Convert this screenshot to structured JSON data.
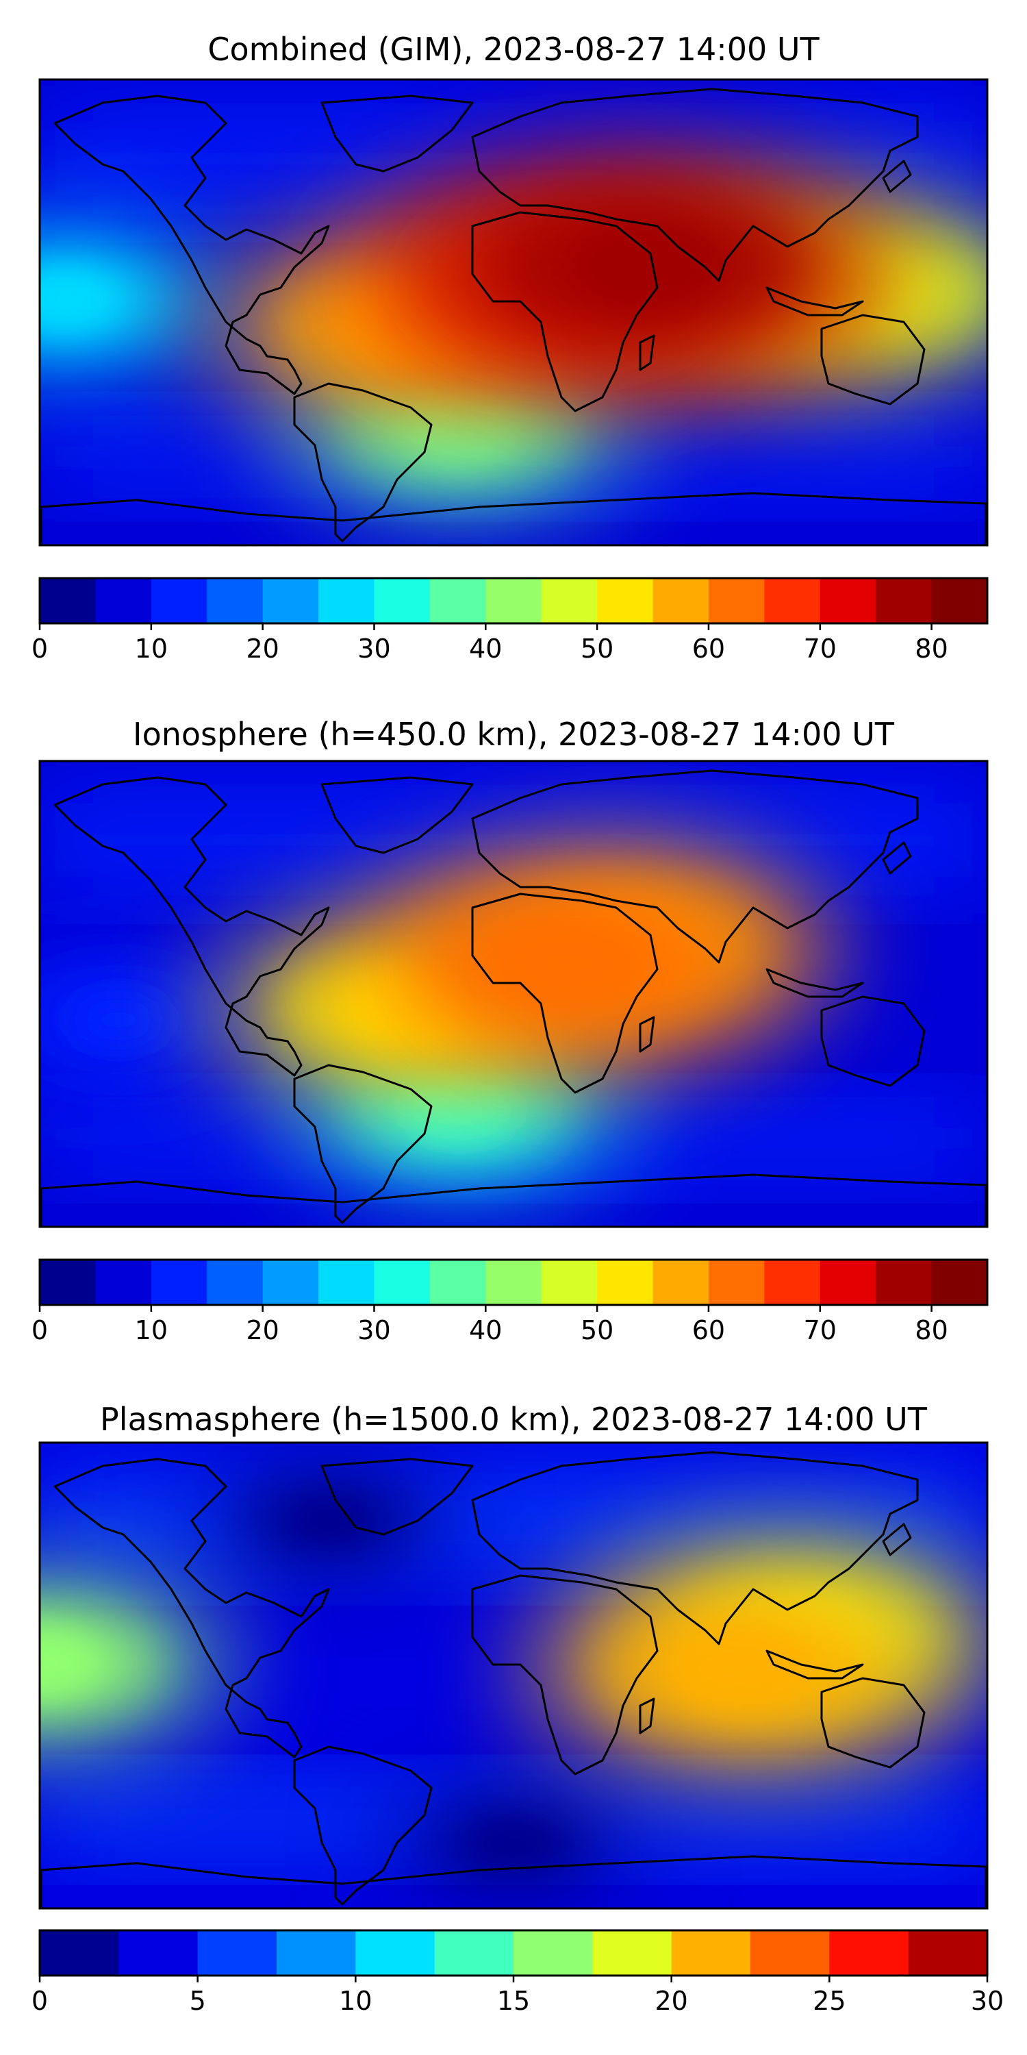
{
  "chart_data": [
    {
      "type": "heatmap",
      "title": "Combined (GIM), 2023-08-27 14:00 UT",
      "colorbar": {
        "levels": [
          0,
          5,
          10,
          15,
          20,
          25,
          30,
          35,
          40,
          45,
          50,
          55,
          60,
          65,
          70,
          75,
          80,
          85
        ],
        "tick_labels": [
          "0",
          "10",
          "20",
          "30",
          "40",
          "50",
          "60",
          "70",
          "80"
        ],
        "tick_values": [
          0,
          10,
          20,
          30,
          40,
          50,
          60,
          70,
          80
        ],
        "range": [
          0,
          85
        ]
      },
      "features": [
        {
          "lon": 50,
          "lat": 18,
          "value": 78
        },
        {
          "lon": 20,
          "lat": 12,
          "value": 68
        },
        {
          "lon": -40,
          "lat": -5,
          "value": 58
        },
        {
          "lon": 80,
          "lat": 10,
          "value": 58
        },
        {
          "lon": 135,
          "lat": 8,
          "value": 45
        },
        {
          "lon": -170,
          "lat": 5,
          "value": 25
        },
        {
          "lon": -20,
          "lat": -45,
          "value": 35
        }
      ]
    },
    {
      "type": "heatmap",
      "title": "Ionosphere  (h=450.0 km), 2023-08-27 14:00 UT",
      "colorbar": {
        "levels": [
          0,
          5,
          10,
          15,
          20,
          25,
          30,
          35,
          40,
          45,
          50,
          55,
          60,
          65,
          70,
          75,
          80,
          85
        ],
        "tick_labels": [
          "0",
          "10",
          "20",
          "30",
          "40",
          "50",
          "60",
          "70",
          "80"
        ],
        "tick_values": [
          0,
          10,
          20,
          30,
          40,
          50,
          60,
          70,
          80
        ],
        "range": [
          0,
          85
        ]
      },
      "features": [
        {
          "lon": 20,
          "lat": 12,
          "value": 62
        },
        {
          "lon": -40,
          "lat": -5,
          "value": 52
        },
        {
          "lon": 45,
          "lat": 18,
          "value": 55
        },
        {
          "lon": 100,
          "lat": 5,
          "value": 5
        },
        {
          "lon": -150,
          "lat": -10,
          "value": 12
        },
        {
          "lon": -20,
          "lat": -45,
          "value": 30
        }
      ]
    },
    {
      "type": "heatmap",
      "title": "Plasmasphere (h=1500.0 km), 2023-08-27 14:00 UT",
      "colorbar": {
        "levels": [
          0,
          2.5,
          5,
          7.5,
          10,
          12.5,
          15,
          17.5,
          20,
          22.5,
          25,
          27.5,
          30
        ],
        "tick_labels": [
          "0",
          "5",
          "10",
          "15",
          "20",
          "25",
          "30"
        ],
        "tick_values": [
          0,
          5,
          10,
          15,
          20,
          25,
          30
        ],
        "range": [
          0,
          30
        ]
      },
      "features": [
        {
          "lon": 85,
          "lat": 2,
          "value": 22
        },
        {
          "lon": 110,
          "lat": 15,
          "value": 19
        },
        {
          "lon": -180,
          "lat": 5,
          "value": 16
        },
        {
          "lon": -70,
          "lat": 60,
          "value": 1
        },
        {
          "lon": 0,
          "lat": -65,
          "value": 1
        }
      ]
    }
  ]
}
